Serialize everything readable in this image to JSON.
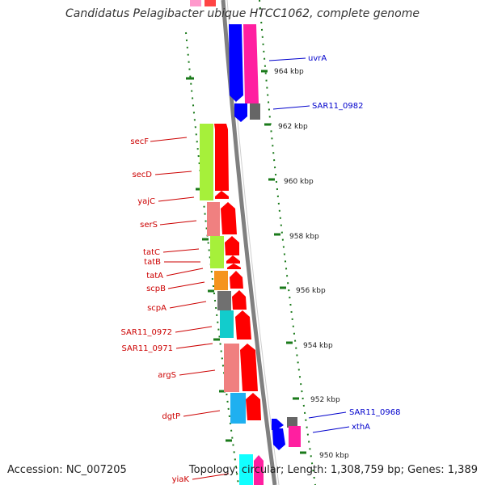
{
  "title": "Candidatus Pelagibacter ubique HTCC1062, complete genome",
  "footer": {
    "accession": "Accession: NC_007205",
    "summary": "Topology: circular; Length: 1,308,759 bp; Genes: 1,389"
  },
  "colors": {
    "backbone": "#808080",
    "tick": "#1a7a1a",
    "gene_label_red": "#cc0000",
    "gene_label_blue": "#0000cc"
  },
  "scale_labels": [
    "964 kbp",
    "962 kbp",
    "960 kbp",
    "958 kbp",
    "956 kbp",
    "954 kbp",
    "952 kbp",
    "950 kbp"
  ],
  "gene_labels": [
    "uvrA",
    "SAR11_0982",
    "secF",
    "secD",
    "yajC",
    "serS",
    "tatC",
    "tatB",
    "tatA",
    "scpB",
    "scpA",
    "SAR11_0972",
    "SAR11_0971",
    "argS",
    "dgtP",
    "SAR11_0968",
    "xthA",
    "yiaK"
  ]
}
